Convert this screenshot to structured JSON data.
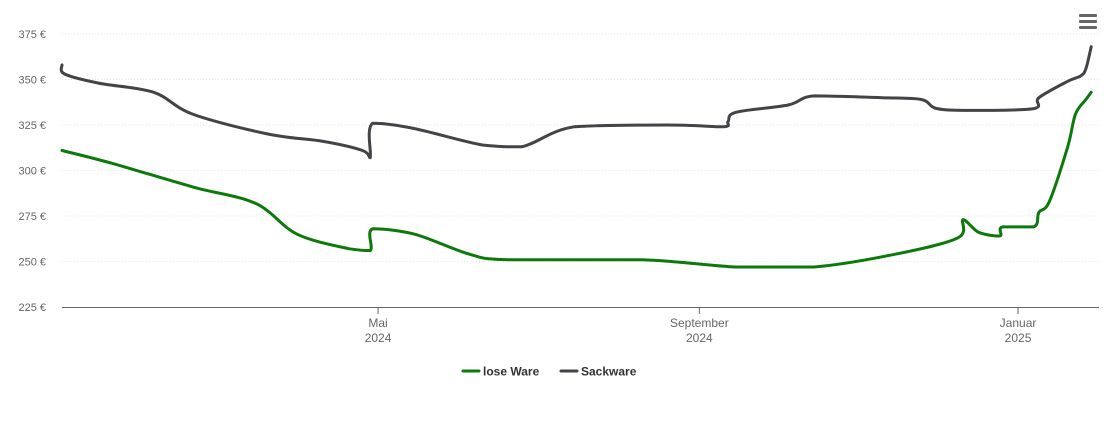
{
  "chart_data": {
    "type": "line",
    "title": "",
    "xlabel": "",
    "ylabel": "",
    "ylim": [
      225,
      375
    ],
    "xlim": [
      "2024-01-01",
      "2025-02-01"
    ],
    "y_ticks": [
      {
        "value": 225,
        "label": "225 €"
      },
      {
        "value": 250,
        "label": "250 €"
      },
      {
        "value": 275,
        "label": "275 €"
      },
      {
        "value": 300,
        "label": "300 €"
      },
      {
        "value": 325,
        "label": "325 €"
      },
      {
        "value": 350,
        "label": "350 €"
      },
      {
        "value": 375,
        "label": "375 €"
      }
    ],
    "x_ticks": [
      {
        "date": "2024-05-01",
        "month": "Mai",
        "year": "2024"
      },
      {
        "date": "2024-09-01",
        "month": "September",
        "year": "2024"
      },
      {
        "date": "2025-01-01",
        "month": "Januar",
        "year": "2025"
      }
    ],
    "grid": true,
    "legend_position": "bottom-center",
    "series": [
      {
        "name": "lose Ware",
        "color": "#0b7a0b",
        "points": [
          [
            "2024-01-01",
            311
          ],
          [
            "2024-01-20",
            304
          ],
          [
            "2024-02-20",
            291
          ],
          [
            "2024-03-15",
            282
          ],
          [
            "2024-03-31",
            265
          ],
          [
            "2024-04-20",
            257
          ],
          [
            "2024-04-28",
            256
          ],
          [
            "2024-04-29",
            268
          ],
          [
            "2024-05-15",
            265
          ],
          [
            "2024-06-05",
            254
          ],
          [
            "2024-06-20",
            251
          ],
          [
            "2024-08-10",
            251
          ],
          [
            "2024-09-15",
            247
          ],
          [
            "2024-10-15",
            247
          ],
          [
            "2024-11-15",
            254
          ],
          [
            "2024-12-09",
            263
          ],
          [
            "2024-12-11",
            273
          ],
          [
            "2024-12-17",
            266
          ],
          [
            "2024-12-25",
            264
          ],
          [
            "2024-12-26",
            269
          ],
          [
            "2025-01-07",
            269
          ],
          [
            "2025-01-09",
            277
          ],
          [
            "2025-01-13",
            283
          ],
          [
            "2025-01-20",
            313
          ],
          [
            "2025-01-23",
            331
          ],
          [
            "2025-01-27",
            339
          ],
          [
            "2025-01-29",
            343
          ]
        ]
      },
      {
        "name": "Sackware",
        "color": "#434348",
        "points": [
          [
            "2024-01-01",
            358
          ],
          [
            "2024-01-02",
            353
          ],
          [
            "2024-01-15",
            348
          ],
          [
            "2024-02-05",
            343
          ],
          [
            "2024-02-20",
            331
          ],
          [
            "2024-03-20",
            320
          ],
          [
            "2024-04-10",
            316
          ],
          [
            "2024-04-25",
            311
          ],
          [
            "2024-04-28",
            307
          ],
          [
            "2024-04-29",
            326
          ],
          [
            "2024-05-15",
            323
          ],
          [
            "2024-06-10",
            314
          ],
          [
            "2024-06-25",
            313
          ],
          [
            "2024-07-15",
            324
          ],
          [
            "2024-08-20",
            325
          ],
          [
            "2024-09-10",
            324
          ],
          [
            "2024-09-12",
            327
          ],
          [
            "2024-09-15",
            332
          ],
          [
            "2024-10-05",
            336
          ],
          [
            "2024-10-15",
            341
          ],
          [
            "2024-11-10",
            340
          ],
          [
            "2024-11-25",
            339
          ],
          [
            "2024-12-01",
            334
          ],
          [
            "2024-12-15",
            333
          ],
          [
            "2025-01-07",
            334
          ],
          [
            "2025-01-09",
            340
          ],
          [
            "2025-01-20",
            349
          ],
          [
            "2025-01-25",
            352
          ],
          [
            "2025-01-27",
            356
          ],
          [
            "2025-01-29",
            368
          ]
        ]
      }
    ]
  },
  "toolbar": {
    "menu_icon": "hamburger-menu-icon"
  }
}
